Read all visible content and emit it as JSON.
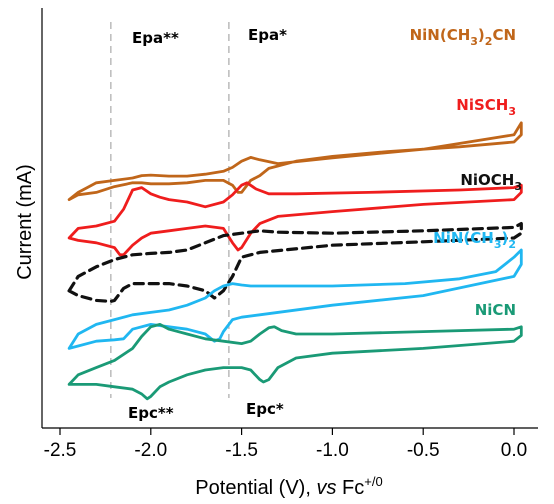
{
  "chart_data": {
    "type": "line",
    "title": "",
    "xlabel_main": "Potential (V), ",
    "xlabel_italic": "vs",
    "xlabel_ref": " Fc",
    "xlabel_sup": "+/0",
    "ylabel": "Current (mA)",
    "xlim": [
      -2.5,
      0.1
    ],
    "xticks": [
      -2.5,
      -2.0,
      -1.5,
      -1.0,
      -0.5,
      0.0
    ],
    "xtick_labels": [
      "-2.5",
      "-2.0",
      "-1.5",
      "-1.0",
      "-0.5",
      "0.0"
    ],
    "y_tick_labels": false,
    "reference_lines_x": [
      -2.22,
      -1.57
    ],
    "annotations": [
      "Epa**",
      "Epa*",
      "Epc**",
      "Epc*"
    ],
    "series": [
      {
        "name": "NiN(CH3)2CN",
        "label_parts": [
          [
            "NiN(CH",
            false
          ],
          [
            "3",
            true
          ],
          [
            ")",
            false
          ],
          [
            "2",
            true
          ],
          [
            "CN",
            false
          ]
        ],
        "color": "#c0661a",
        "dashed": false,
        "offset": 4,
        "x": [
          -2.45,
          -2.4,
          -2.35,
          -2.3,
          -2.2,
          -2.1,
          -2.05,
          -2.0,
          -1.95,
          -1.9,
          -1.8,
          -1.7,
          -1.6,
          -1.55,
          -1.5,
          -1.45,
          -1.4,
          -1.3,
          -1.0,
          -0.5,
          0.0,
          0.04,
          0.04,
          0.0,
          -0.3,
          -0.7,
          -1.0,
          -1.2,
          -1.3,
          -1.35,
          -1.4,
          -1.45,
          -1.5,
          -1.52,
          -1.55,
          -1.6,
          -1.7,
          -1.8,
          -1.9,
          -1.95,
          -2.0,
          -2.05,
          -2.1,
          -2.2,
          -2.3,
          -2.4,
          -2.45
        ],
        "y": [
          -0.45,
          -0.3,
          -0.2,
          -0.1,
          -0.05,
          0.0,
          0.05,
          0.06,
          0.05,
          0.04,
          0.04,
          0.08,
          0.14,
          0.22,
          0.35,
          0.43,
          0.38,
          0.3,
          0.42,
          0.6,
          0.9,
          1.15,
          0.9,
          0.75,
          0.65,
          0.55,
          0.45,
          0.35,
          0.25,
          0.2,
          0.05,
          -0.05,
          -0.3,
          -0.3,
          -0.15,
          -0.05,
          -0.05,
          -0.1,
          -0.12,
          -0.12,
          -0.12,
          -0.1,
          -0.1,
          -0.18,
          -0.3,
          -0.35,
          -0.45
        ]
      },
      {
        "name": "NiSCH3",
        "label_parts": [
          [
            "NiSCH",
            false
          ],
          [
            "3",
            true
          ]
        ],
        "color": "#ef1d1d",
        "dashed": false,
        "offset": 2.95,
        "x": [
          -2.45,
          -2.4,
          -2.3,
          -2.2,
          -2.15,
          -2.1,
          -2.05,
          -2.0,
          -1.95,
          -1.9,
          -1.8,
          -1.7,
          -1.6,
          -1.55,
          -1.5,
          -1.47,
          -1.42,
          -1.35,
          -1.2,
          -0.8,
          -0.3,
          0.0,
          0.04,
          0.04,
          0.0,
          -0.5,
          -1.0,
          -1.3,
          -1.4,
          -1.45,
          -1.5,
          -1.52,
          -1.55,
          -1.6,
          -1.7,
          -1.8,
          -1.9,
          -2.0,
          -2.05,
          -2.1,
          -2.15,
          -2.17,
          -2.2,
          -2.3,
          -2.4,
          -2.45
        ],
        "y": [
          -0.2,
          0.0,
          0.05,
          0.15,
          0.4,
          0.8,
          0.85,
          0.72,
          0.65,
          0.6,
          0.55,
          0.45,
          0.55,
          0.7,
          0.9,
          0.95,
          0.82,
          0.72,
          0.72,
          0.75,
          0.8,
          0.85,
          0.9,
          0.75,
          0.6,
          0.5,
          0.35,
          0.25,
          0.1,
          -0.1,
          -0.4,
          -0.45,
          -0.3,
          0.0,
          0.05,
          0.0,
          -0.05,
          -0.1,
          -0.2,
          -0.35,
          -0.55,
          -0.55,
          -0.4,
          -0.3,
          -0.25,
          -0.2
        ]
      },
      {
        "name": "NiOCH3",
        "label_parts": [
          [
            "NiOCH",
            false
          ],
          [
            "3",
            true
          ]
        ],
        "color": "#111111",
        "dashed": true,
        "offset": 2.05,
        "x": [
          -2.45,
          -2.4,
          -2.3,
          -2.2,
          -2.1,
          -2.0,
          -1.9,
          -1.8,
          -1.7,
          -1.6,
          -1.5,
          -1.4,
          -1.3,
          -1.0,
          -0.5,
          0.0,
          0.04,
          0.04,
          0.0,
          -0.5,
          -1.0,
          -1.4,
          -1.5,
          -1.55,
          -1.6,
          -1.65,
          -1.7,
          -1.8,
          -1.9,
          -2.0,
          -2.1,
          -2.15,
          -2.2,
          -2.22,
          -2.3,
          -2.4,
          -2.45
        ],
        "y": [
          -0.4,
          -0.1,
          0.1,
          0.25,
          0.35,
          0.38,
          0.4,
          0.45,
          0.6,
          0.75,
          0.8,
          0.85,
          0.82,
          0.8,
          0.85,
          0.92,
          1.0,
          0.8,
          0.7,
          0.62,
          0.55,
          0.4,
          0.3,
          -0.1,
          -0.4,
          -0.55,
          -0.4,
          -0.3,
          -0.25,
          -0.25,
          -0.25,
          -0.35,
          -0.6,
          -0.62,
          -0.6,
          -0.5,
          -0.4
        ]
      },
      {
        "name": "NiN(CH3)2",
        "label_parts": [
          [
            "NiN(CH",
            false
          ],
          [
            "3",
            true
          ],
          [
            ")",
            false
          ],
          [
            "2",
            true
          ]
        ],
        "color": "#20b7f1",
        "dashed": false,
        "offset": 0.95,
        "x": [
          -2.45,
          -2.4,
          -2.3,
          -2.2,
          -2.1,
          -2.0,
          -1.9,
          -1.8,
          -1.7,
          -1.65,
          -1.6,
          -1.55,
          -1.5,
          -1.45,
          -1.3,
          -1.0,
          -0.6,
          -0.3,
          -0.1,
          0.0,
          0.04,
          0.04,
          0.0,
          -0.5,
          -1.0,
          -1.4,
          -1.5,
          -1.55,
          -1.6,
          -1.62,
          -1.65,
          -1.7,
          -1.8,
          -1.9,
          -2.0,
          -2.1,
          -2.15,
          -2.2,
          -2.3,
          -2.4,
          -2.45
        ],
        "y": [
          -0.5,
          -0.2,
          0.0,
          0.1,
          0.2,
          0.25,
          0.3,
          0.4,
          0.55,
          0.7,
          0.8,
          0.85,
          0.82,
          0.8,
          0.8,
          0.8,
          0.85,
          0.95,
          1.1,
          1.4,
          1.55,
          1.25,
          1.0,
          0.6,
          0.4,
          0.2,
          0.15,
          0.1,
          -0.15,
          -0.3,
          -0.35,
          -0.2,
          -0.1,
          -0.05,
          0.0,
          -0.1,
          -0.3,
          -0.32,
          -0.35,
          -0.45,
          -0.5
        ]
      },
      {
        "name": "NiCN",
        "label_parts": [
          [
            "NiCN",
            false
          ]
        ],
        "color": "#1a9a76",
        "dashed": false,
        "offset": 0,
        "x": [
          -2.45,
          -2.4,
          -2.3,
          -2.2,
          -2.1,
          -2.05,
          -2.0,
          -1.95,
          -1.9,
          -1.8,
          -1.7,
          -1.6,
          -1.5,
          -1.45,
          -1.4,
          -1.35,
          -1.32,
          -1.28,
          -1.2,
          -1.0,
          -0.5,
          0.0,
          0.04,
          0.04,
          0.0,
          -0.5,
          -1.0,
          -1.2,
          -1.3,
          -1.35,
          -1.38,
          -1.4,
          -1.45,
          -1.5,
          -1.6,
          -1.7,
          -1.8,
          -1.9,
          -1.95,
          -2.0,
          -2.02,
          -2.05,
          -2.1,
          -2.2,
          -2.3,
          -2.4,
          -2.45
        ],
        "y": [
          -0.3,
          -0.1,
          0.05,
          0.2,
          0.45,
          0.7,
          0.9,
          0.95,
          0.85,
          0.75,
          0.65,
          0.6,
          0.55,
          0.6,
          0.75,
          0.88,
          0.9,
          0.82,
          0.75,
          0.75,
          0.8,
          0.85,
          0.9,
          0.72,
          0.6,
          0.45,
          0.35,
          0.25,
          0.05,
          -0.2,
          -0.25,
          -0.2,
          0.0,
          0.05,
          0.05,
          0.0,
          -0.1,
          -0.25,
          -0.35,
          -0.55,
          -0.6,
          -0.5,
          -0.4,
          -0.35,
          -0.3,
          -0.3,
          -0.3
        ]
      }
    ]
  },
  "colors": {
    "annotation": "#111111",
    "guide": "#b0b0b0",
    "axis": "#000000"
  }
}
